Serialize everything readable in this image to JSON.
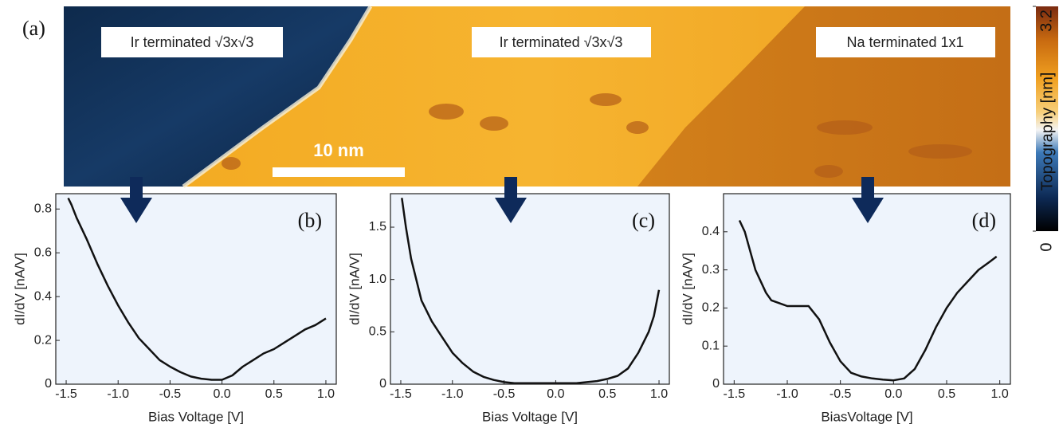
{
  "image": {
    "panel_label": "(a)",
    "labels": [
      "Ir terminated √3x√3",
      "Ir terminated √3x√3",
      "Na terminated 1x1"
    ],
    "scale_bar": "10 nm",
    "colorbar": {
      "label": "Topography [nm]",
      "ticks": [
        0,
        3.2
      ]
    }
  },
  "chart_data": [
    {
      "type": "line",
      "panel_label": "(b)",
      "x_label": "Bias Voltage [V]",
      "y_label": "dI/dV [nA/V]",
      "color": "#111111",
      "background": "#eef4fc",
      "x": [
        -1.48,
        -1.45,
        -1.4,
        -1.3,
        -1.2,
        -1.1,
        -1.0,
        -0.9,
        -0.8,
        -0.7,
        -0.6,
        -0.5,
        -0.4,
        -0.3,
        -0.2,
        -0.1,
        0.0,
        0.1,
        0.2,
        0.3,
        0.4,
        0.5,
        0.6,
        0.7,
        0.8,
        0.9,
        1.0
      ],
      "values": [
        0.85,
        0.82,
        0.76,
        0.66,
        0.55,
        0.45,
        0.36,
        0.28,
        0.21,
        0.16,
        0.11,
        0.08,
        0.055,
        0.035,
        0.025,
        0.02,
        0.02,
        0.04,
        0.08,
        0.11,
        0.14,
        0.16,
        0.19,
        0.22,
        0.25,
        0.27,
        0.3
      ],
      "xlim": [
        -1.6,
        1.1
      ],
      "ylim": [
        0,
        0.87
      ],
      "xticks": [
        -1.5,
        {
          "value": -1,
          "label": "-1.0"
        },
        -0.5,
        {
          "value": 0,
          "label": "0.0"
        },
        0.5,
        {
          "value": 1,
          "label": "1.0"
        }
      ],
      "yticks": [
        0,
        0.2,
        0.4,
        0.6,
        0.8
      ]
    },
    {
      "type": "line",
      "panel_label": "(c)",
      "x_label": "Bias Voltage [V]",
      "y_label": "dI/dV [nA/V]",
      "color": "#111111",
      "background": "#eef4fc",
      "x": [
        -1.49,
        -1.45,
        -1.4,
        -1.3,
        -1.2,
        -1.1,
        -1.0,
        -0.9,
        -0.8,
        -0.7,
        -0.6,
        -0.5,
        -0.4,
        -0.2,
        0.0,
        0.2,
        0.4,
        0.5,
        0.6,
        0.7,
        0.8,
        0.9,
        0.95,
        1.0
      ],
      "values": [
        1.78,
        1.5,
        1.2,
        0.8,
        0.6,
        0.45,
        0.3,
        0.2,
        0.12,
        0.07,
        0.04,
        0.02,
        0.01,
        0.01,
        0.01,
        0.01,
        0.03,
        0.05,
        0.08,
        0.15,
        0.3,
        0.5,
        0.65,
        0.9
      ],
      "xlim": [
        -1.6,
        1.1
      ],
      "ylim": [
        0,
        1.82
      ],
      "xticks": [
        -1.5,
        {
          "value": -1,
          "label": "-1.0"
        },
        -0.5,
        {
          "value": 0,
          "label": "0.0"
        },
        0.5,
        {
          "value": 1,
          "label": "1.0"
        }
      ],
      "yticks": [
        0,
        0.5,
        {
          "value": 1,
          "label": "1.0"
        },
        1.5
      ]
    },
    {
      "type": "line",
      "panel_label": "(d)",
      "x_label": "BiasVoltage [V]",
      "y_label": "dI/dV [nA/V]",
      "color": "#111111",
      "background": "#eef4fc",
      "x": [
        -1.45,
        -1.4,
        -1.3,
        -1.2,
        -1.15,
        -1.1,
        -1.0,
        -0.9,
        -0.8,
        -0.7,
        -0.6,
        -0.5,
        -0.4,
        -0.3,
        -0.2,
        -0.1,
        0.0,
        0.1,
        0.2,
        0.3,
        0.4,
        0.5,
        0.6,
        0.7,
        0.8,
        0.9,
        0.97
      ],
      "values": [
        0.43,
        0.4,
        0.3,
        0.24,
        0.22,
        0.215,
        0.205,
        0.205,
        0.205,
        0.17,
        0.11,
        0.06,
        0.03,
        0.02,
        0.015,
        0.012,
        0.01,
        0.015,
        0.04,
        0.09,
        0.15,
        0.2,
        0.24,
        0.27,
        0.3,
        0.32,
        0.335
      ],
      "xlim": [
        -1.6,
        1.1
      ],
      "ylim": [
        0,
        0.5
      ],
      "xticks": [
        -1.5,
        {
          "value": -1,
          "label": "-1.0"
        },
        -0.5,
        {
          "value": 0,
          "label": "0.0"
        },
        0.5,
        {
          "value": 1,
          "label": "1.0"
        }
      ],
      "yticks": [
        0,
        0.1,
        0.2,
        0.3,
        0.4
      ]
    }
  ]
}
